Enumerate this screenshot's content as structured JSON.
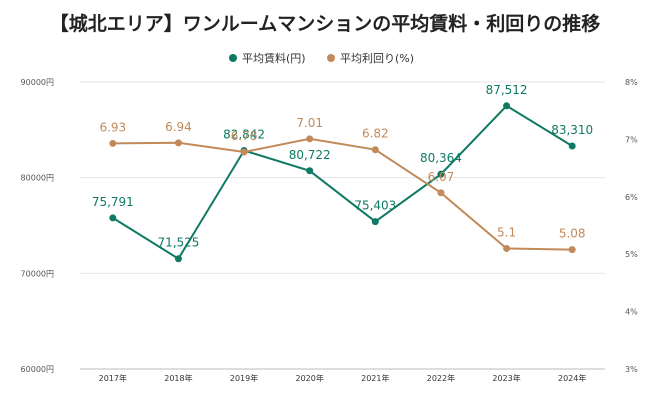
{
  "chart_data": {
    "type": "line",
    "title": "【城北エリア】ワンルームマンションの平均賃料・利回りの推移",
    "categories": [
      "2017年",
      "2018年",
      "2019年",
      "2020年",
      "2021年",
      "2022年",
      "2023年",
      "2024年"
    ],
    "series": [
      {
        "name": "平均賃料(円)",
        "axis": "left",
        "color": "#0f7a63",
        "values": [
          75791,
          71525,
          82842,
          80722,
          75403,
          80364,
          87512,
          83310
        ],
        "labels": [
          "75,791",
          "71,525",
          "82,842",
          "80,722",
          "75,403",
          "80,364",
          "87,512",
          "83,310"
        ]
      },
      {
        "name": "平均利回り(%)",
        "axis": "right",
        "color": "#c28a5a",
        "values": [
          6.93,
          6.94,
          6.78,
          7.01,
          6.82,
          6.07,
          5.1,
          5.08
        ],
        "labels": [
          "6.93",
          "6.94",
          "6.78",
          "7.01",
          "6.82",
          "6.07",
          "5.1",
          "5.08"
        ]
      }
    ],
    "y_left": {
      "range": [
        60000,
        90000
      ],
      "ticks": [
        60000,
        70000,
        80000,
        90000
      ],
      "tick_labels": [
        "60000円",
        "70000円",
        "80000円",
        "90000円"
      ]
    },
    "y_right": {
      "range": [
        3,
        8
      ],
      "ticks": [
        3,
        4,
        5,
        6,
        7,
        8
      ],
      "tick_labels": [
        "3%",
        "4%",
        "5%",
        "6%",
        "7%",
        "8%"
      ]
    },
    "grid": true,
    "legend_position": "top-center"
  }
}
